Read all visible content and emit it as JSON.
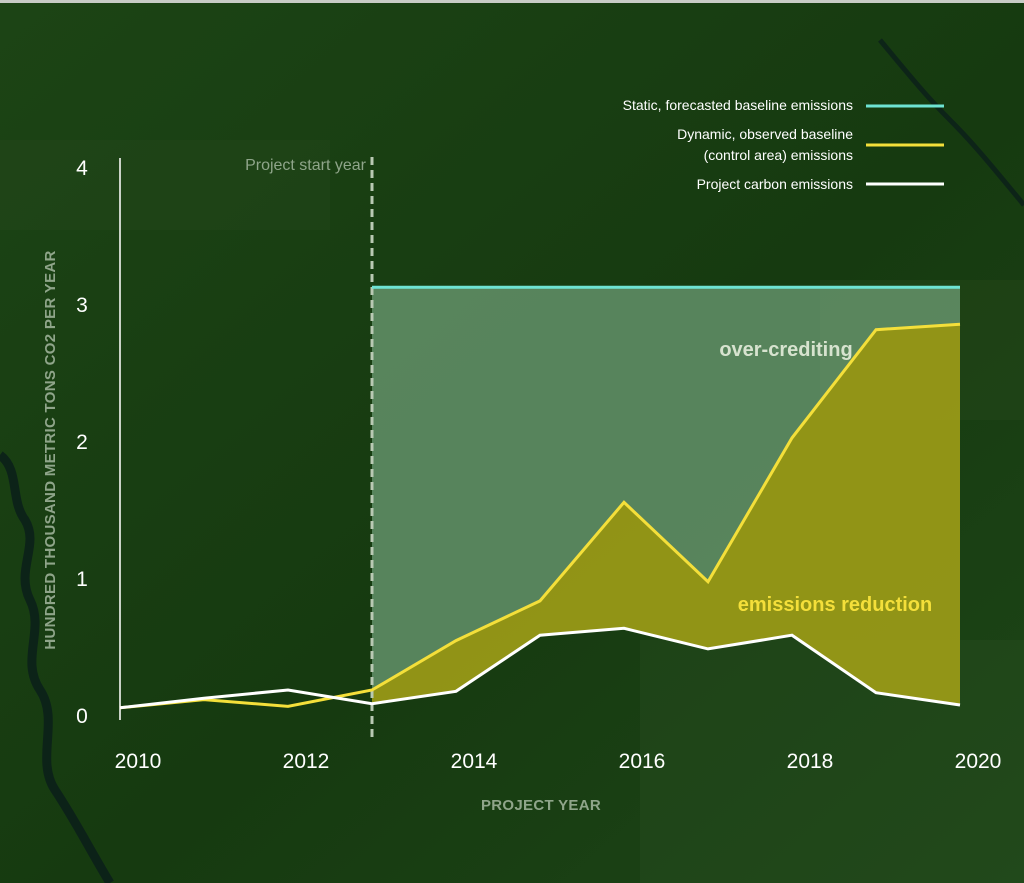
{
  "chart_data": {
    "type": "line",
    "x": [
      2010,
      2011,
      2012,
      2013,
      2014,
      2015,
      2016,
      2017,
      2018,
      2019,
      2020
    ],
    "xticks": [
      "2010",
      "2012",
      "2014",
      "2016",
      "2018",
      "2020"
    ],
    "yticks": [
      "0",
      "1",
      "2",
      "3",
      "4"
    ],
    "xlim": [
      2010,
      2020
    ],
    "ylim": [
      0,
      4
    ],
    "xlabel": "PROJECT YEAR",
    "ylabel": "HUNDRED THOUSAND METRIC TONS CO2 PER YEAR",
    "grid": false,
    "legend_position": "top-right",
    "series": [
      {
        "name": "Static, forecasted baseline emissions",
        "color": "#6ee3d3",
        "x": [
          2013,
          2020
        ],
        "values": [
          3.13,
          3.13
        ]
      },
      {
        "name_line1": "Dynamic, observed baseline",
        "name_line2": "(control area) emissions",
        "color": "#f4df3a",
        "x": [
          2010,
          2011,
          2012,
          2013,
          2014,
          2015,
          2016,
          2017,
          2018,
          2019,
          2020
        ],
        "values": [
          0.06,
          0.12,
          0.07,
          0.19,
          0.55,
          0.84,
          1.56,
          0.98,
          2.03,
          2.82,
          2.86
        ]
      },
      {
        "name": "Project carbon emissions",
        "color": "#ffffff",
        "x": [
          2010,
          2011,
          2012,
          2013,
          2014,
          2015,
          2016,
          2017,
          2018,
          2019,
          2020
        ],
        "values": [
          0.06,
          0.13,
          0.19,
          0.09,
          0.18,
          0.59,
          0.64,
          0.49,
          0.59,
          0.17,
          0.08
        ]
      }
    ],
    "annotations": {
      "project_start_year": 2013,
      "project_start_label": "Project start year",
      "over_crediting": "over-crediting",
      "emissions_reduction": "emissions reduction"
    }
  },
  "colors": {
    "background": "#173d12",
    "axis": "#e8ece6",
    "over_fill": "#7fb28a",
    "reduction_fill": "#a7a318",
    "start_line": "#b9c9b3",
    "muted_text": "#8fa58a",
    "over_text": "#d7e3cf",
    "reduction_text": "#f4df3a"
  }
}
